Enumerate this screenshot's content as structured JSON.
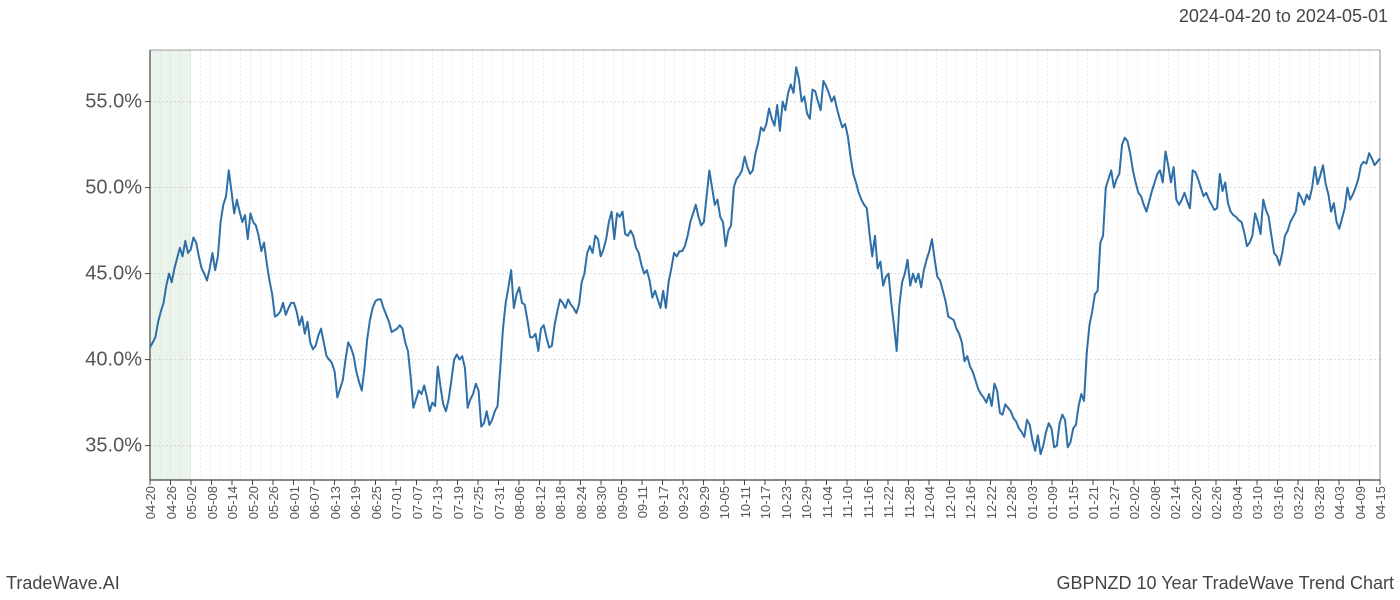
{
  "header": {
    "date_range": "2024-04-20 to 2024-05-01"
  },
  "footer": {
    "left": "TradeWave.AI",
    "right": "GBPNZD 10 Year TradeWave Trend Chart"
  },
  "chart": {
    "type": "line",
    "background_color": "#ffffff",
    "line_color": "#2f6fa7",
    "line_width": 2,
    "grid_color": "#d8d8d8",
    "grid_dash": "2,2",
    "border_color": "#444444",
    "highlight_band": {
      "color": "rgba(120,180,120,0.15)",
      "x_start": "04-20",
      "x_end": "05-02"
    },
    "ylim": [
      33,
      58
    ],
    "y_ticks": [
      35.0,
      40.0,
      45.0,
      50.0,
      55.0
    ],
    "y_tick_labels": [
      "35.0%",
      "40.0%",
      "45.0%",
      "50.0%",
      "55.0%"
    ],
    "x_ticks": [
      "04-20",
      "04-26",
      "05-02",
      "05-08",
      "05-14",
      "05-20",
      "05-26",
      "06-01",
      "06-07",
      "06-13",
      "06-19",
      "06-25",
      "07-01",
      "07-07",
      "07-13",
      "07-19",
      "07-25",
      "07-31",
      "08-06",
      "08-12",
      "08-18",
      "08-24",
      "08-30",
      "09-05",
      "09-11",
      "09-17",
      "09-23",
      "09-29",
      "10-05",
      "10-11",
      "10-17",
      "10-23",
      "10-29",
      "11-04",
      "11-10",
      "11-16",
      "11-22",
      "11-28",
      "12-04",
      "12-10",
      "12-16",
      "12-22",
      "12-28",
      "01-03",
      "01-09",
      "01-15",
      "01-21",
      "01-27",
      "02-02",
      "02-08",
      "02-14",
      "02-20",
      "02-26",
      "03-04",
      "03-10",
      "03-16",
      "03-22",
      "03-28",
      "04-03",
      "04-09",
      "04-15"
    ],
    "x_grid_count": 122,
    "label_fontsize": 20,
    "tick_fontsize": 13,
    "series": {
      "values": [
        40.7,
        41.0,
        41.3,
        42.2,
        42.8,
        43.3,
        44.3,
        45.0,
        44.5,
        45.3,
        45.9,
        46.5,
        46.0,
        46.9,
        46.2,
        46.4,
        47.1,
        46.8,
        46.0,
        45.3,
        45.0,
        44.6,
        45.3,
        46.2,
        45.2,
        46.0,
        48.0,
        49.0,
        49.5,
        51.0,
        49.8,
        48.5,
        49.3,
        48.6,
        48.0,
        48.4,
        47.0,
        48.5,
        48.0,
        47.8,
        47.2,
        46.3,
        46.8,
        45.6,
        44.6,
        43.8,
        42.5,
        42.6,
        42.8,
        43.3,
        42.6,
        43.0,
        43.3,
        43.3,
        42.8,
        42.0,
        42.5,
        41.5,
        42.2,
        41.0,
        40.6,
        40.8,
        41.4,
        41.8,
        41.0,
        40.2,
        40.0,
        39.8,
        39.3,
        37.8,
        38.3,
        38.8,
        40.0,
        41.0,
        40.7,
        40.2,
        39.3,
        38.7,
        38.2,
        39.5,
        41.2,
        42.3,
        43.0,
        43.4,
        43.5,
        43.5,
        43.0,
        42.6,
        42.2,
        41.6,
        41.7,
        41.8,
        42.0,
        41.8,
        41.0,
        40.5,
        39.0,
        37.2,
        37.7,
        38.2,
        38.0,
        38.5,
        37.8,
        37.0,
        37.5,
        37.3,
        39.6,
        38.4,
        37.4,
        37.0,
        37.7,
        38.8,
        40.0,
        40.3,
        40.0,
        40.2,
        39.5,
        37.2,
        37.7,
        38.0,
        38.6,
        38.2,
        36.1,
        36.3,
        37.0,
        36.2,
        36.5,
        37.0,
        37.3,
        39.5,
        41.8,
        43.3,
        44.2,
        45.2,
        43.0,
        43.8,
        44.2,
        43.3,
        43.2,
        42.3,
        41.3,
        41.3,
        41.5,
        40.5,
        41.8,
        42.0,
        41.3,
        40.7,
        40.8,
        42.0,
        42.8,
        43.5,
        43.3,
        43.0,
        43.5,
        43.2,
        43.0,
        42.7,
        43.2,
        44.5,
        45.0,
        46.2,
        46.6,
        46.2,
        47.2,
        47.0,
        46.0,
        46.4,
        47.0,
        48.0,
        48.6,
        47.0,
        48.5,
        48.3,
        48.6,
        47.3,
        47.2,
        47.5,
        47.2,
        46.5,
        46.2,
        45.5,
        45.0,
        45.2,
        44.6,
        43.6,
        44.0,
        43.5,
        43.0,
        44.0,
        43.0,
        44.5,
        45.3,
        46.2,
        46.0,
        46.3,
        46.3,
        46.6,
        47.2,
        48.0,
        48.5,
        49.0,
        48.3,
        47.8,
        48.0,
        49.5,
        51.0,
        50.0,
        49.0,
        49.3,
        48.3,
        48.0,
        46.6,
        47.5,
        47.8,
        50.0,
        50.5,
        50.7,
        51.0,
        51.8,
        51.2,
        50.8,
        51.0,
        52.0,
        52.6,
        53.5,
        53.3,
        53.7,
        54.6,
        54.0,
        53.6,
        54.8,
        53.3,
        55.0,
        54.5,
        55.5,
        56.0,
        55.5,
        57.0,
        56.3,
        55.0,
        55.3,
        54.3,
        54.0,
        55.7,
        55.6,
        55.0,
        54.5,
        56.2,
        55.9,
        55.5,
        55.0,
        55.3,
        54.6,
        54.0,
        53.5,
        53.7,
        53.0,
        51.8,
        50.8,
        50.3,
        49.7,
        49.3,
        49.0,
        48.8,
        47.3,
        46.0,
        47.2,
        45.3,
        45.7,
        44.3,
        44.8,
        45.0,
        43.3,
        42.0,
        40.5,
        43.2,
        44.5,
        45.0,
        45.8,
        44.3,
        45.0,
        44.5,
        45.0,
        44.2,
        45.2,
        45.8,
        46.3,
        47.0,
        45.8,
        44.8,
        44.6,
        44.0,
        43.4,
        42.5,
        42.4,
        42.3,
        41.8,
        41.5,
        41.0,
        39.9,
        40.2,
        39.6,
        39.3,
        38.8,
        38.3,
        38.0,
        37.8,
        37.5,
        38.0,
        37.3,
        38.6,
        38.2,
        36.9,
        36.8,
        37.4,
        37.2,
        37.0,
        36.6,
        36.4,
        36.0,
        35.8,
        35.5,
        36.5,
        36.2,
        35.3,
        34.7,
        35.6,
        34.5,
        35.0,
        35.8,
        36.3,
        36.0,
        34.9,
        35.0,
        36.3,
        36.8,
        36.5,
        34.9,
        35.2,
        36.0,
        36.2,
        37.3,
        38.0,
        37.6,
        40.4,
        42.0,
        42.8,
        43.8,
        44.0,
        46.8,
        47.2,
        50.0,
        50.5,
        51.0,
        50.0,
        50.5,
        50.8,
        52.5,
        52.9,
        52.7,
        52.0,
        51.0,
        50.3,
        49.7,
        49.5,
        49.0,
        48.6,
        49.2,
        49.8,
        50.3,
        50.8,
        51.0,
        50.3,
        52.1,
        51.3,
        50.3,
        51.2,
        49.3,
        49.0,
        49.3,
        49.7,
        49.2,
        48.8,
        51.0,
        50.9,
        50.5,
        50.0,
        49.5,
        49.7,
        49.3,
        49.0,
        48.7,
        48.8,
        50.8,
        49.8,
        50.3,
        49.1,
        48.6,
        48.4,
        48.3,
        48.1,
        48.0,
        47.4,
        46.6,
        46.8,
        47.2,
        48.5,
        48.0,
        47.3,
        49.3,
        48.7,
        48.3,
        47.2,
        46.2,
        46.0,
        45.5,
        46.2,
        47.2,
        47.5,
        48.0,
        48.3,
        48.6,
        49.7,
        49.4,
        49.0,
        49.6,
        49.3,
        50.0,
        51.2,
        50.2,
        50.7,
        51.3,
        50.2,
        49.6,
        48.6,
        49.1,
        48.0,
        47.6,
        48.2,
        48.8,
        50.0,
        49.3,
        49.6,
        50.0,
        50.5,
        51.3,
        51.5,
        51.4,
        52.0,
        51.7,
        51.3,
        51.5,
        51.7
      ]
    }
  }
}
